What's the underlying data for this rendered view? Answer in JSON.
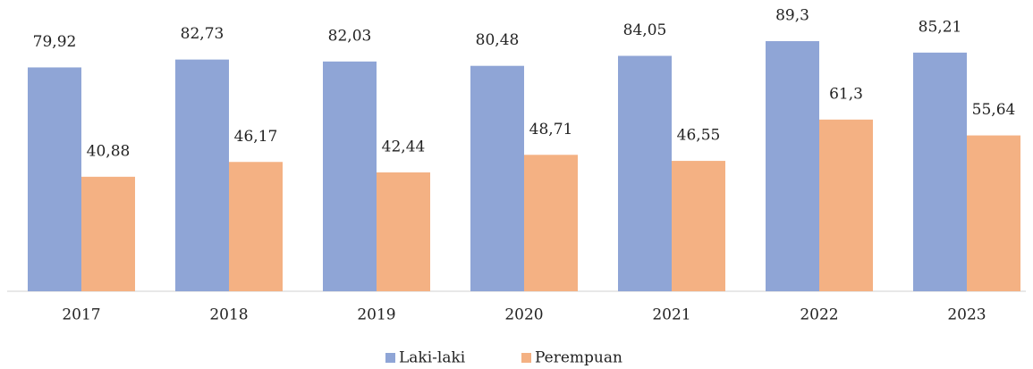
{
  "chart_data": {
    "type": "bar",
    "categories": [
      "2017",
      "2018",
      "2019",
      "2020",
      "2021",
      "2022",
      "2023"
    ],
    "series": [
      {
        "name": "Laki-laki",
        "color": "#8fa5d6",
        "values": [
          79.92,
          82.73,
          82.03,
          80.48,
          84.05,
          89.3,
          85.21
        ],
        "value_labels": [
          "79,92",
          "82,73",
          "82,03",
          "80,48",
          "84,05",
          "89,3",
          "85,21"
        ]
      },
      {
        "name": "Perempuan",
        "color": "#f4b183",
        "values": [
          40.88,
          46.17,
          42.44,
          48.71,
          46.55,
          61.3,
          55.64
        ],
        "value_labels": [
          "40,88",
          "46,17",
          "42,44",
          "48,71",
          "46,55",
          "61,3",
          "55,64"
        ]
      }
    ],
    "legend": "bottom"
  }
}
